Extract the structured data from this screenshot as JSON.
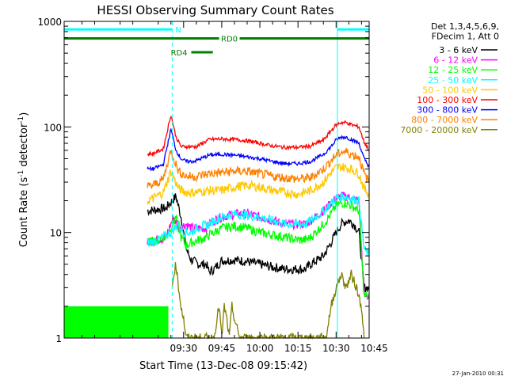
{
  "chart_data": {
    "type": "line",
    "title": "HESSI Observing Summary Count Rates",
    "xlabel": "Start Time (13-Dec-08 09:15:42)",
    "ylabel_main": "Count Rate (s",
    "ylabel_sup1": "-1",
    "ylabel_mid": " detector",
    "ylabel_sup2": "-1",
    "ylabel_end": ")",
    "y_scale": "log",
    "ylim": [
      1,
      1000
    ],
    "xlim_minutes": [
      -17,
      103
    ],
    "x_ticks": [
      {
        "minute": 30,
        "label": "09:30"
      },
      {
        "minute": 45,
        "label": "09:45"
      },
      {
        "minute": 60,
        "label": "10:00"
      },
      {
        "minute": 75,
        "label": "10:15"
      },
      {
        "minute": 90,
        "label": "10:30"
      },
      {
        "minute": 105,
        "label": "10:45"
      }
    ],
    "y_ticks": [
      {
        "value": 1,
        "label": "1"
      },
      {
        "value": 10,
        "label": "10"
      },
      {
        "value": 100,
        "label": "100"
      },
      {
        "value": 1000,
        "label": "1000"
      }
    ],
    "legend_header": [
      "Det 1,3,4,5,6,9,",
      "FDecim 1, Att 0"
    ],
    "legend_position": "right",
    "series": [
      {
        "name": "3 - 6 keV",
        "color": "#000000",
        "x": [
          15.7,
          23,
          27,
          29,
          31,
          33,
          36,
          39,
          40,
          42,
          45,
          50,
          55,
          60,
          65,
          70,
          75,
          78,
          80,
          85,
          88,
          90,
          92,
          93,
          95,
          97,
          99,
          101,
          103
        ],
        "y": [
          16,
          17,
          22,
          14,
          7,
          5.5,
          5,
          5,
          4.2,
          4.5,
          5.4,
          5.5,
          5.3,
          5,
          4.7,
          4.5,
          4.5,
          4.5,
          5,
          6,
          8,
          10,
          12,
          12.5,
          13,
          12,
          10,
          3,
          3
        ]
      },
      {
        "name": "6 - 12 keV",
        "color": "#ff00ff",
        "x": [
          15.7,
          23,
          26,
          28,
          31,
          33,
          36,
          39,
          40,
          42,
          45,
          50,
          55,
          60,
          65,
          70,
          75,
          78,
          80,
          85,
          88,
          90,
          92,
          94,
          96,
          99,
          101,
          103
        ],
        "y": [
          8,
          9,
          14,
          11,
          12,
          11,
          11,
          11,
          12,
          13,
          14,
          15,
          15,
          14,
          13,
          12,
          12,
          12,
          13,
          16,
          19,
          21,
          22,
          22,
          21,
          20,
          2.5,
          2.5
        ]
      },
      {
        "name": "12 - 25 keV",
        "color": "#00ff00",
        "x": [
          15.7,
          23,
          27,
          29,
          31,
          33,
          36,
          39,
          40,
          42,
          45,
          50,
          55,
          60,
          65,
          70,
          75,
          78,
          80,
          85,
          88,
          90,
          92,
          94,
          96,
          99,
          101,
          103
        ],
        "y": [
          8,
          9,
          14,
          9,
          7.5,
          8,
          8.5,
          9,
          9.5,
          10,
          11,
          11.5,
          11,
          10,
          9.5,
          9,
          8.5,
          8.5,
          9,
          12,
          15,
          18,
          19,
          19,
          18,
          16,
          2.5,
          2.5
        ]
      },
      {
        "name": "25 - 50 keV",
        "color": "#00ffff",
        "x": [
          15.7,
          20,
          25,
          28,
          30,
          33,
          35,
          40,
          42,
          45,
          50,
          55,
          60,
          65,
          70,
          75,
          78,
          80,
          85,
          88,
          90,
          92,
          94,
          96,
          99,
          101,
          103
        ],
        "y": [
          8,
          8.5,
          10,
          12,
          10,
          10,
          11,
          12,
          13,
          14,
          15,
          14.5,
          14,
          13,
          12,
          12,
          12,
          13,
          16,
          19,
          21,
          22,
          22,
          21,
          20,
          7,
          6
        ]
      },
      {
        "name": "50 - 100 keV",
        "color": "#ffc800",
        "x": [
          15.7,
          18,
          22,
          25,
          28,
          31,
          33,
          35,
          40,
          45,
          50,
          55,
          60,
          65,
          70,
          75,
          80,
          85,
          88,
          90,
          92,
          94,
          96,
          99,
          101,
          103
        ],
        "y": [
          20,
          21,
          24,
          38,
          26,
          24,
          24,
          24,
          25,
          25,
          27,
          28,
          27,
          25,
          24,
          23,
          25,
          30,
          37,
          41,
          42,
          41,
          40,
          36,
          26,
          23
        ]
      },
      {
        "name": "100 - 300 keV",
        "color": "#ff0000",
        "x": [
          15.7,
          18,
          22,
          25,
          27,
          29,
          31,
          33,
          35,
          40,
          45,
          50,
          55,
          60,
          65,
          70,
          75,
          80,
          85,
          88,
          90,
          92,
          94,
          96,
          99,
          101,
          103
        ],
        "y": [
          55,
          56,
          62,
          130,
          80,
          65,
          65,
          65,
          65,
          76,
          77,
          76,
          74,
          70,
          66,
          64,
          64,
          66,
          75,
          92,
          105,
          110,
          110,
          105,
          100,
          72,
          60
        ]
      },
      {
        "name": "300 - 800 keV",
        "color": "#0000ff",
        "x": [
          15.7,
          18,
          22,
          25,
          27,
          29,
          31,
          33,
          35,
          40,
          45,
          50,
          55,
          60,
          65,
          70,
          75,
          80,
          85,
          88,
          90,
          92,
          94,
          96,
          99,
          101,
          103
        ],
        "y": [
          40,
          40,
          44,
          95,
          60,
          50,
          47,
          47,
          48,
          54,
          55,
          54,
          52,
          50,
          47,
          45,
          45,
          47,
          55,
          65,
          75,
          80,
          80,
          76,
          70,
          50,
          42
        ]
      },
      {
        "name": "800 - 7000 keV",
        "color": "#ff8000",
        "x": [
          15.7,
          18,
          22,
          25,
          28,
          31,
          33,
          35,
          40,
          45,
          50,
          55,
          60,
          65,
          70,
          75,
          80,
          85,
          88,
          90,
          92,
          94,
          96,
          99,
          101,
          103
        ],
        "y": [
          27,
          28,
          32,
          60,
          38,
          34,
          34,
          34,
          36,
          37,
          38,
          38,
          36,
          34,
          33,
          32,
          33,
          40,
          48,
          54,
          58,
          58,
          55,
          52,
          36,
          30
        ]
      },
      {
        "name": "7000 - 20000 keV",
        "color": "#808000",
        "x": [
          25.5,
          26,
          27,
          28,
          29,
          30,
          31,
          42,
          43,
          44,
          45,
          46,
          47,
          48,
          49,
          50,
          52,
          86,
          88,
          90,
          92,
          94,
          96,
          98,
          100,
          101
        ],
        "y": [
          3,
          4,
          5,
          3,
          2,
          1.5,
          1,
          1,
          1.5,
          2,
          1,
          2,
          1.5,
          1,
          2,
          1.5,
          1,
          1,
          2,
          3,
          4,
          3,
          4,
          3,
          2,
          1
        ]
      }
    ],
    "annotations": [
      {
        "label": "N",
        "color": "#00ffff"
      },
      {
        "label": "RD0",
        "color": "#008000"
      },
      {
        "label": "RD4",
        "color": "#008000"
      }
    ],
    "attenuator_bars": [
      {
        "name": "N",
        "color": "#00ffff",
        "x": [
          -17,
          25.5
        ],
        "y": 840
      },
      {
        "name": "N",
        "color": "#00ffff",
        "x": [
          90.5,
          103
        ],
        "y": 840
      },
      {
        "name": "RD0",
        "color": "#008000",
        "x": [
          -17,
          103
        ],
        "y": 690
      },
      {
        "name": "RD4",
        "color": "#008000",
        "x": [
          33,
          41.5
        ],
        "y": 510
      }
    ],
    "cyan_solid_markers": [
      -17,
      90.5
    ],
    "cyan_dashed_markers": [
      25.5,
      103
    ],
    "green_fill": {
      "color": "#00ff00",
      "x": [
        -17,
        24
      ],
      "ymax": 2
    },
    "timestamp": "27-Jan-2010 00:31"
  }
}
